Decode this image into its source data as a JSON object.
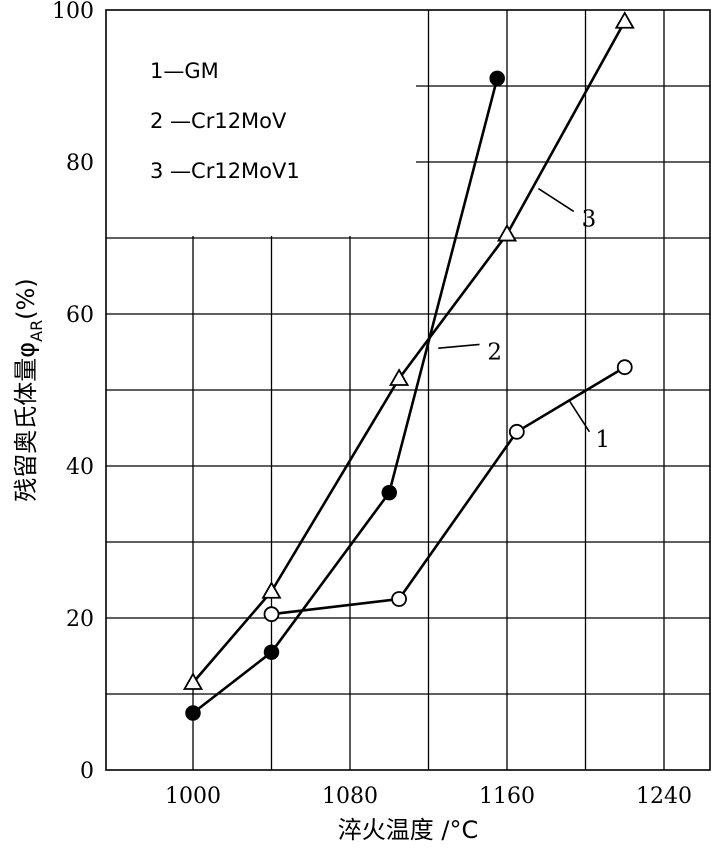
{
  "chart_data": {
    "type": "line",
    "xlabel": "淬火温度 /°C",
    "ylabel": "残留奥氏体量φ",
    "ylabel_sub": "AR",
    "ylabel_unit": "(%)",
    "xlim": [
      940,
      1290
    ],
    "ylim": [
      0,
      100
    ],
    "x_ticks": [
      1000,
      1080,
      1160,
      1240
    ],
    "x_grid": [
      1000,
      1040,
      1080,
      1120,
      1160,
      1200,
      1240
    ],
    "y_ticks": [
      0,
      20,
      40,
      60,
      80,
      100
    ],
    "legend": {
      "placement": "top-left",
      "entries": [
        "1—GM",
        "2 —Cr12MoV",
        "3 —Cr12MoV1"
      ]
    },
    "series": [
      {
        "name": "1—GM",
        "marker": "open-circle",
        "callout": "1",
        "points": [
          [
            1040,
            20.5
          ],
          [
            1105,
            22.5
          ],
          [
            1165,
            44.5
          ],
          [
            1220,
            53
          ]
        ]
      },
      {
        "name": "2 —Cr12MoV",
        "marker": "filled-circle",
        "callout": "2",
        "points": [
          [
            1000,
            7.5
          ],
          [
            1040,
            15.5
          ],
          [
            1100,
            36.5
          ],
          [
            1155,
            91
          ]
        ]
      },
      {
        "name": "3 —Cr12MoV1",
        "marker": "open-triangle",
        "callout": "3",
        "points": [
          [
            1000,
            11.5
          ],
          [
            1040,
            23.5
          ],
          [
            1105,
            51.5
          ],
          [
            1160,
            70.5
          ],
          [
            1220,
            98.5
          ]
        ]
      }
    ]
  }
}
